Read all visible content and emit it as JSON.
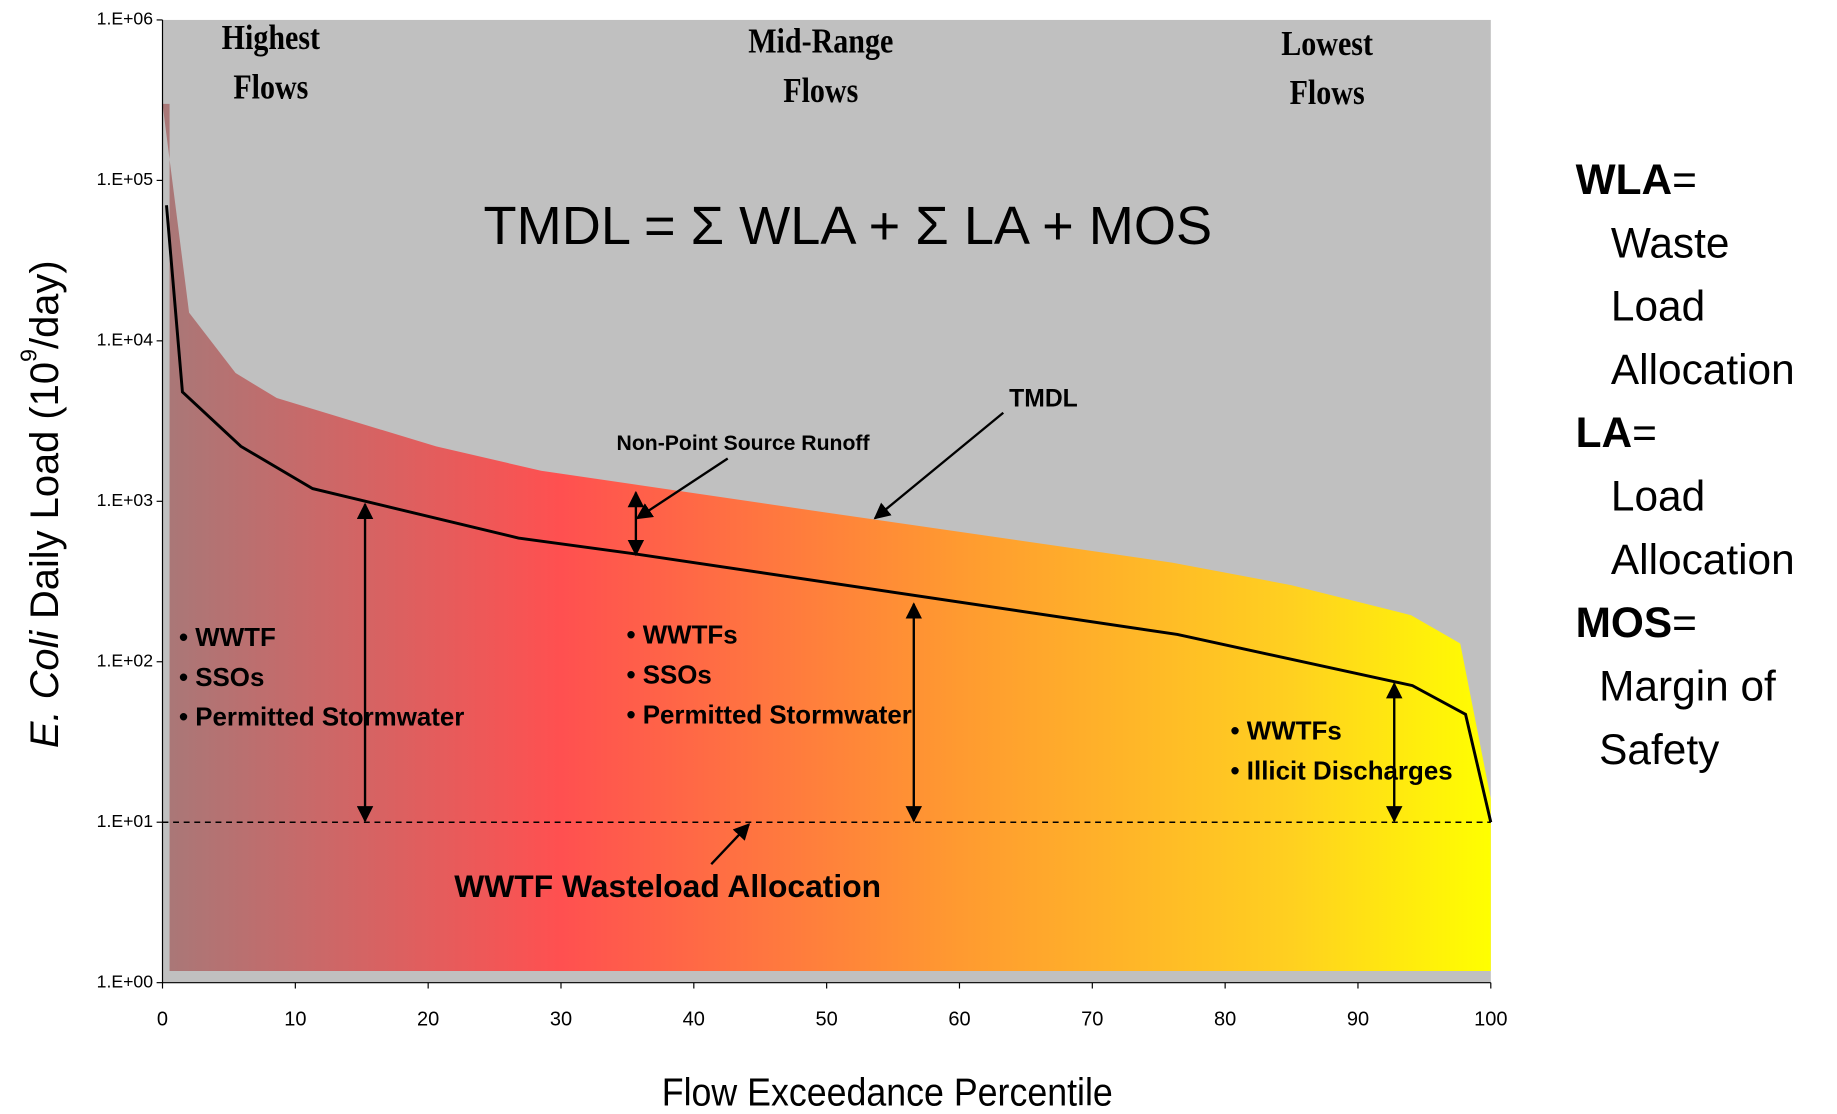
{
  "chart_data": {
    "type": "line",
    "ylabel_parts": [
      "E. Coli",
      "Daily Load (10",
      "9",
      "/day)"
    ],
    "xlabel": "Flow Exceedance Percentile",
    "xlim": [
      0,
      100
    ],
    "xticks": [
      0,
      10,
      20,
      30,
      40,
      50,
      60,
      70,
      80,
      90,
      100
    ],
    "ylim": [
      1,
      1000000
    ],
    "log_y": true,
    "yticks": [
      {
        "value": 1,
        "label": "1.E+00"
      },
      {
        "value": 10,
        "label": "1.E+01"
      },
      {
        "value": 100,
        "label": "1.E+02"
      },
      {
        "value": 1000,
        "label": "1.E+03"
      },
      {
        "value": 10000,
        "label": "1.E+04"
      },
      {
        "value": 100000,
        "label": "1.E+05"
      },
      {
        "value": 1000000,
        "label": "1.E+06"
      }
    ],
    "background": "#c0c0c0",
    "series": [
      {
        "style": "area",
        "color": "#b87474",
        "x": [
          0,
          2,
          5.5,
          8.6,
          20.6,
          28.5,
          50,
          76,
          85,
          94,
          97.7,
          100
        ],
        "values": [
          300000,
          15000,
          6300,
          4400,
          2200,
          1550,
          850,
          415,
          300,
          195,
          130,
          14
        ]
      },
      {
        "style": "solid",
        "color": "#000000",
        "x": [
          0.3,
          1.5,
          5.9,
          11.3,
          26.8,
          35.6,
          76.4,
          94.1,
          98.1,
          100
        ],
        "values": [
          70000,
          4800,
          2200,
          1200,
          590,
          470,
          148,
          71,
          47,
          10
        ]
      },
      {
        "style": "dashed",
        "color": "#000000",
        "x": [
          0,
          100
        ],
        "values": [
          10,
          10
        ]
      }
    ],
    "annotations": {
      "zones": [
        [
          "Highest",
          "Flows"
        ],
        [
          "Mid-Range",
          "Flows"
        ],
        [
          "Lowest",
          "Flows"
        ]
      ],
      "equation": "TMDL = Σ WLA + Σ LA + MOS",
      "tmdl": "TMDL",
      "nps": "Non-Point Source Runoff",
      "wwtf_wla": "WWTF Wasteload Allocation",
      "lists": [
        [
          "• WWTF",
          "• SSOs",
          "• Permitted Stormwater"
        ],
        [
          "• WWTFs",
          "• SSOs",
          "• Permitted Stormwater"
        ],
        [
          "• WWTFs",
          "• Illicit Discharges"
        ]
      ]
    },
    "definitions": [
      {
        "term": "WLA",
        "sep": "=",
        "lines": [
          "Waste",
          "Load",
          "Allocation"
        ]
      },
      {
        "term": "LA",
        "sep": "=",
        "lines": [
          "Load",
          "Allocation"
        ]
      },
      {
        "term": "MOS",
        "sep": "=",
        "lines": [
          "Margin of",
          "Safety"
        ]
      }
    ]
  }
}
